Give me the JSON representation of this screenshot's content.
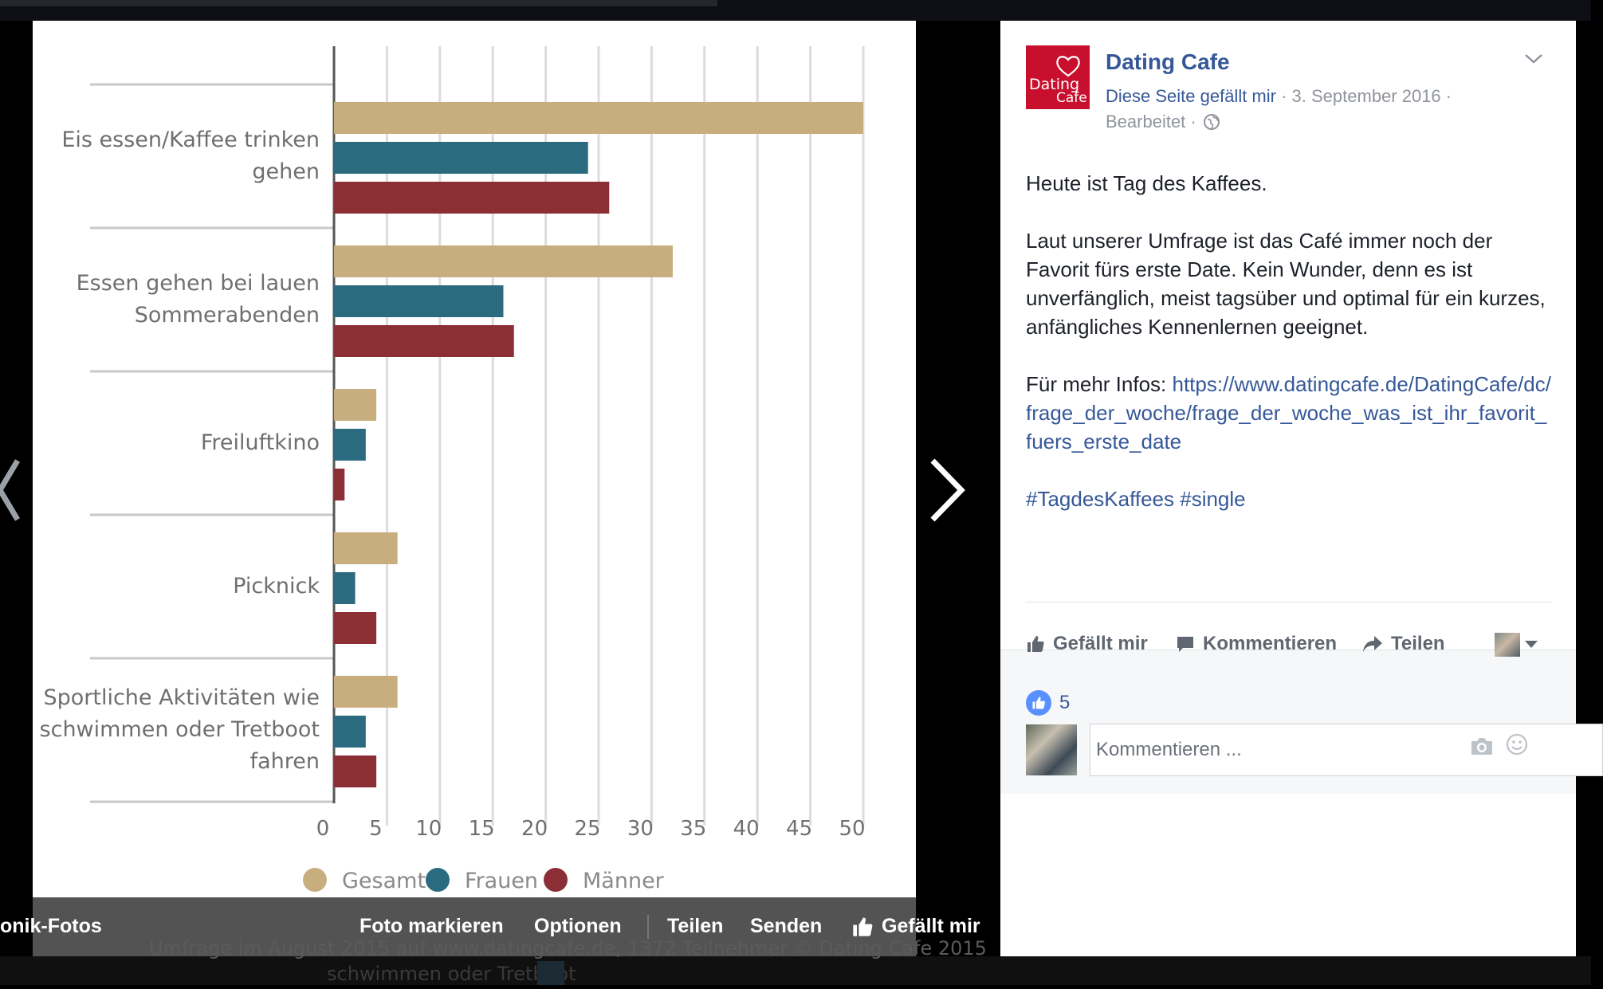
{
  "viewer": {
    "album_label": "onik-Fotos",
    "actions": {
      "tag": "Foto markieren",
      "options": "Optionen",
      "share": "Teilen",
      "send": "Senden",
      "like": "Gefällt mir"
    }
  },
  "chart_data": {
    "type": "bar",
    "orientation": "horizontal",
    "categories": [
      [
        "Eis essen/Kaffee trinken",
        "gehen"
      ],
      [
        "Essen gehen bei lauen",
        "Sommerabenden"
      ],
      [
        "Freiluftkino"
      ],
      [
        "Picknick"
      ],
      [
        "Sportliche Aktivitäten wie",
        "schwimmen oder Tretboot",
        "fahren"
      ]
    ],
    "series": [
      {
        "name": "Gesamt",
        "color": "#c8ae7e",
        "values": [
          50,
          32,
          4,
          6,
          6
        ]
      },
      {
        "name": "Frauen",
        "color": "#2b6b80",
        "values": [
          24,
          16,
          3,
          2,
          3
        ]
      },
      {
        "name": "Männer",
        "color": "#8b2f35",
        "values": [
          26,
          17,
          1,
          4,
          4
        ]
      }
    ],
    "x_ticks": [
      0,
      5,
      10,
      15,
      20,
      25,
      30,
      35,
      40,
      45,
      50
    ],
    "xlim": [
      0,
      50
    ],
    "grid": true,
    "legend_position": "bottom",
    "source_note": "Umfrage im August 2015 auf www.datingcafe.de, 1372 Teilnehmer © Dating Cafe 2015",
    "clipped_label": "schwimmen oder Tretboot"
  },
  "post": {
    "page_logo": {
      "line1": "Dating",
      "line2": "Cafe",
      "color": "#c8102e"
    },
    "page_name": "Dating Cafe",
    "liked_text": "Diese Seite gefällt mir",
    "date": " · 3. September 2016 ·",
    "edited": "Bearbeitet ·",
    "paragraph1": "Heute ist Tag des Kaffees.",
    "paragraph2": "Laut unserer Umfrage ist das Café immer noch der Favorit fürs erste Date. Kein Wunder, denn es ist unverfänglich, meist tagsüber und optimal für ein kurzes, anfängliches Kennenlernen geeignet.",
    "more_info_prefix": "Für mehr Infos: ",
    "link": "https://www.datingcafe.de/DatingCafe/dc/frage_der_woche/frage_der_woche_was_ist_ihr_favorit_fuers_erste_date",
    "hashtag1": "#TagdesKaffees",
    "hashtag2": "#single",
    "actions": {
      "like": "Gefällt mir",
      "comment": "Kommentieren",
      "share": "Teilen"
    },
    "reactions_count": "5",
    "comment_placeholder": "Kommentieren ..."
  }
}
